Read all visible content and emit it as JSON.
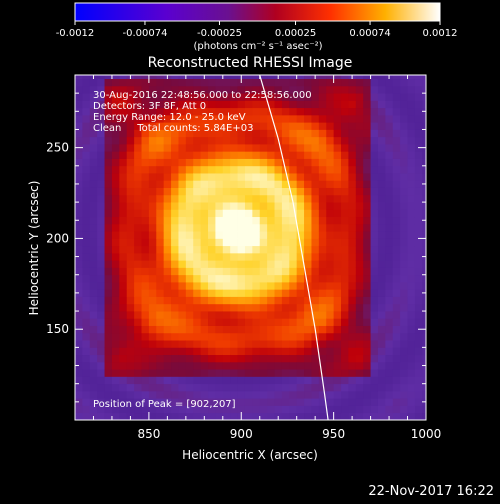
{
  "chart_data": {
    "type": "heatmap",
    "title": "Reconstructed RHESSI Image",
    "xlabel": "Heliocentric X (arcsec)",
    "ylabel": "Heliocentric Y (arcsec)",
    "xlim": [
      810,
      1000
    ],
    "ylim": [
      100,
      290
    ],
    "x_ticks": [
      850,
      900,
      950,
      1000
    ],
    "y_ticks": [
      150,
      200,
      250
    ],
    "colorbar": {
      "ticks": [
        "-0.0012",
        "-0.00074",
        "-0.00025",
        "0.00025",
        "0.00074",
        "0.0012"
      ],
      "range": [
        -0.0012,
        0.0012
      ],
      "unit_label": "(photons cm⁻² s⁻¹ asec⁻²)"
    },
    "info_lines": [
      "30-Aug-2016 22:48:56.000 to 22:58:56.000",
      "Detectors: 3F 8F, Att 0",
      "Energy Range: 12.0 - 25.0 keV",
      "Clean     Total counts: 5.84E+03"
    ],
    "peak_label": "Position of Peak = [902,207]",
    "peak": [
      902,
      207
    ],
    "source_center": [
      898,
      205
    ],
    "limb_curve": [
      [
        910,
        290
      ],
      [
        920,
        255
      ],
      [
        928,
        220
      ],
      [
        934,
        185
      ],
      [
        940,
        150
      ],
      [
        945,
        115
      ],
      [
        947,
        100
      ]
    ],
    "grid": false
  },
  "footer": {
    "timestamp": "22-Nov-2017 16:22"
  },
  "colors": {
    "background": "#000000",
    "text": "#ffffff",
    "map_low": "#4a1a8c",
    "map_high": "#ffffe6"
  }
}
